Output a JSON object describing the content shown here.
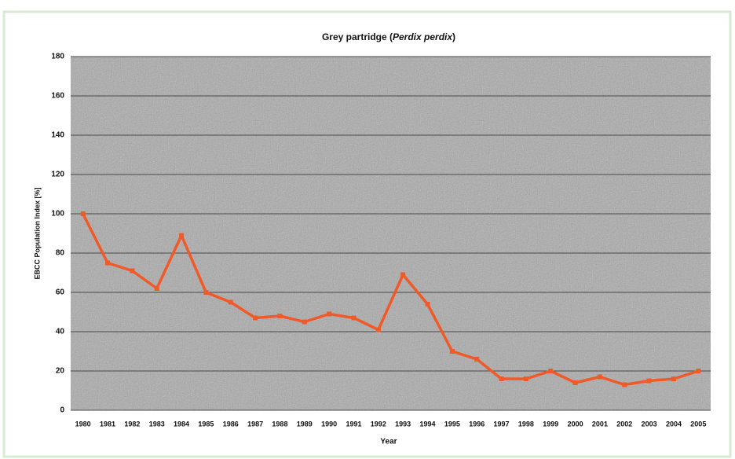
{
  "chart_data": {
    "type": "line",
    "title": [
      "Grey partridge (",
      "Perdix perdix",
      ")"
    ],
    "x_label": "Year",
    "y_label": "EBCC Population Index [%]",
    "categories": [
      "1980",
      "1981",
      "1982",
      "1983",
      "1984",
      "1985",
      "1986",
      "1987",
      "1988",
      "1989",
      "1990",
      "1991",
      "1992",
      "1993",
      "1994",
      "1995",
      "1996",
      "1997",
      "1998",
      "1999",
      "2000",
      "2001",
      "2002",
      "2003",
      "2004",
      "2005"
    ],
    "series": [
      {
        "color": "#f05a28",
        "values": [
          100,
          75,
          71,
          62,
          89,
          60,
          55,
          47,
          48,
          45,
          49,
          47,
          41,
          69,
          54,
          30,
          26,
          16,
          16,
          20,
          14,
          17,
          13,
          15,
          16,
          20
        ]
      }
    ],
    "ylim": [
      0,
      180
    ],
    "yticks": [
      0,
      20,
      40,
      60,
      80,
      100,
      120,
      140,
      160,
      180
    ],
    "grid": true
  }
}
